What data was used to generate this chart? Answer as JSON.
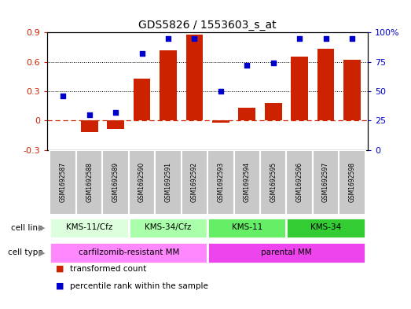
{
  "title": "GDS5826 / 1553603_s_at",
  "samples": [
    "GSM1692587",
    "GSM1692588",
    "GSM1692589",
    "GSM1692590",
    "GSM1692591",
    "GSM1692592",
    "GSM1692593",
    "GSM1692594",
    "GSM1692595",
    "GSM1692596",
    "GSM1692597",
    "GSM1692598"
  ],
  "transformed_count": [
    0.0,
    -0.12,
    -0.09,
    0.43,
    0.72,
    0.88,
    -0.02,
    0.13,
    0.18,
    0.65,
    0.73,
    0.62
  ],
  "percentile_rank": [
    46,
    30,
    32,
    82,
    95,
    95,
    50,
    72,
    74,
    95,
    95,
    95
  ],
  "bar_color": "#CC2200",
  "dot_color": "#0000CC",
  "ylim_left": [
    -0.3,
    0.9
  ],
  "ylim_right": [
    0,
    100
  ],
  "yticks_left": [
    -0.3,
    0.0,
    0.3,
    0.6,
    0.9
  ],
  "yticks_right": [
    0,
    25,
    50,
    75,
    100
  ],
  "ytick_labels_right": [
    "0",
    "25",
    "50",
    "75",
    "100%"
  ],
  "hline_y": 0.0,
  "hline_color": "#CC2200",
  "dotted_lines": [
    0.3,
    0.6
  ],
  "cell_line_groups": [
    {
      "label": "KMS-11/Cfz",
      "start": 0,
      "end": 2,
      "color": "#DDFFDD"
    },
    {
      "label": "KMS-34/Cfz",
      "start": 3,
      "end": 5,
      "color": "#AAFFAA"
    },
    {
      "label": "KMS-11",
      "start": 6,
      "end": 8,
      "color": "#66EE66"
    },
    {
      "label": "KMS-34",
      "start": 9,
      "end": 11,
      "color": "#33CC33"
    }
  ],
  "cell_type_groups": [
    {
      "label": "carfilzomib-resistant MM",
      "start": 0,
      "end": 5,
      "color": "#FF88FF"
    },
    {
      "label": "parental MM",
      "start": 6,
      "end": 11,
      "color": "#EE44EE"
    }
  ],
  "sample_box_color": "#C8C8C8",
  "legend_items": [
    {
      "label": "transformed count",
      "color": "#CC2200"
    },
    {
      "label": "percentile rank within the sample",
      "color": "#0000CC"
    }
  ],
  "cell_line_label": "cell line",
  "cell_type_label": "cell type",
  "arrow_color": "#888888"
}
